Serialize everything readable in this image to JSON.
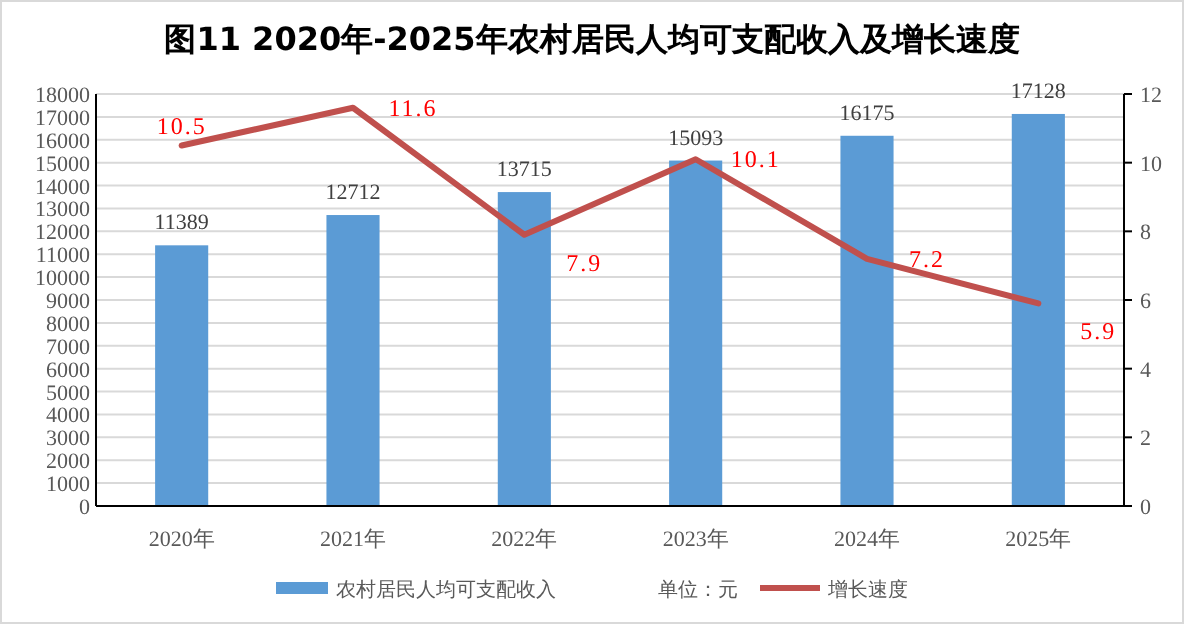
{
  "chart_data": {
    "type": "bar",
    "title": "图11  2020年-2025年农村居民人均可支配收入及增长速度",
    "categories": [
      "2020年",
      "2021年",
      "2022年",
      "2023年",
      "2024年",
      "2025年"
    ],
    "series": [
      {
        "name": "农村居民人均可支配收入",
        "color": "#5b9bd5",
        "values": [
          11389,
          12712,
          13715,
          15093,
          16175,
          17128
        ]
      },
      {
        "name": "增长速度",
        "type": "line",
        "axis": "y2",
        "color": "#c0504d",
        "values": [
          10.5,
          11.6,
          7.9,
          10.1,
          7.2,
          5.9
        ]
      }
    ],
    "ylim": [
      0,
      18000
    ],
    "yticks": [
      0,
      1000,
      2000,
      3000,
      4000,
      5000,
      6000,
      7000,
      8000,
      9000,
      10000,
      11000,
      12000,
      13000,
      14000,
      15000,
      16000,
      17000,
      18000
    ],
    "y2lim": [
      0,
      12
    ],
    "y2ticks": [
      0,
      2,
      4,
      6,
      8,
      10,
      12
    ],
    "grid": "y",
    "legend": "bottom",
    "data_labels": true,
    "marker": "none",
    "annotations": [
      "单位：元"
    ]
  }
}
